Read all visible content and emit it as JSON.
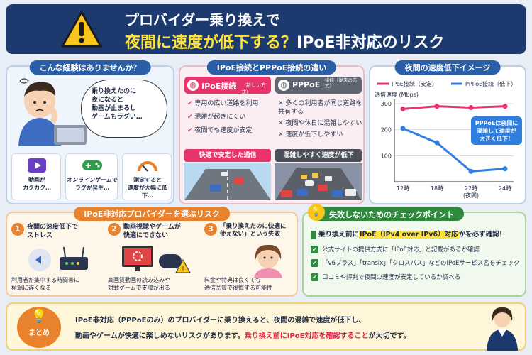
{
  "header": {
    "title_line1": "プロバイダー乗り換えで",
    "title_line2_a": "夜間に速度が低下する？",
    "title_line2_b": "IPoE非対応のリスク"
  },
  "experience": {
    "title": "こんな経験はありませんか？",
    "bubble": [
      "乗り換えたのに",
      "夜になると",
      "動画が止まるし",
      "ゲームもラグい…"
    ],
    "cards": [
      {
        "icon": "play-icon",
        "label": "動画が\nカクカク…"
      },
      {
        "icon": "gamepad-icon",
        "label": "オンラインゲームで\nラグが発生…"
      },
      {
        "icon": "speedometer-icon",
        "label": "測定すると\n速度が大幅に低下…"
      }
    ]
  },
  "compare": {
    "title": "IPoE接続とPPPoE接続の違い",
    "ipoe": {
      "name": "IPoE接続",
      "sub": "（新しい方式）",
      "points": [
        "専用の広い道路を利用",
        "混雑が起きにくい",
        "夜間でも速度が安定"
      ],
      "caption": "快適で安定した通信"
    },
    "pppoe": {
      "name": "PPPoE",
      "sub": "接続（従来の方式）",
      "points": [
        "多くの利用者が同じ道路を\n共有する",
        "夜間や休日に混雑しやすい",
        "速度が低下しやすい"
      ],
      "caption": "混雑しやすく速度が低下"
    }
  },
  "chart_data": {
    "type": "line",
    "title": "夜間の速度低下イメージ",
    "ylabel": "通信速度 (Mbps)",
    "categories": [
      "12時",
      "18時",
      "22時\n(夜間)",
      "24時"
    ],
    "ylim": [
      0,
      300
    ],
    "yticks": [
      100,
      200,
      300
    ],
    "series": [
      {
        "name": "IPoE接続（安定）",
        "color": "#e8336b",
        "values": [
          280,
          290,
          285,
          290
        ]
      },
      {
        "name": "PPPoE接続（低下）",
        "color": "#2f7fe0",
        "values": [
          205,
          150,
          40,
          50
        ]
      }
    ],
    "legend": "top",
    "annotation": "PPPoEは夜間に\n混雑して速度が\n大きく低下！"
  },
  "risks": {
    "title": "IPoE非対応プロバイダーを選ぶリスク",
    "items": [
      {
        "num": "1",
        "title": "夜間の速度低下で\nストレス",
        "desc": "利用者が集中する時間帯に\n極端に遅くなる"
      },
      {
        "num": "2",
        "title": "動画視聴やゲームが\n快適にできない",
        "desc": "高画質動画の読み込みや\n対戦ゲームで支障が出る"
      },
      {
        "num": "3",
        "title": "「乗り換えたのに快適に\n使えない」という失敗",
        "desc": "料金や特典は良くても\n通信品質で後悔する可能性"
      }
    ]
  },
  "checklist": {
    "title": "失敗しないためのチェックポイント",
    "lead_a": "乗り換え前に",
    "lead_hl": "IPoE（IPv4 over IPv6）対応",
    "lead_b": "かを必ず確認！",
    "items": [
      "公式サイトの提供方式に「IPoE対応」と記載があるか確認",
      "「v6プラス」「transix」「クロスパス」などのIPoEサービス名をチェック",
      "口コミや評判で夜間の速度が安定しているか調べる"
    ]
  },
  "summary": {
    "badge": "まとめ",
    "line1": "IPoE非対応（PPPoEのみ）のプロバイダーに乗り換えると、夜間の混雑で速度が低下し、",
    "line2_a": "動画やゲームが快適に楽しめないリスクがあります。",
    "line2_hl": "乗り換え前にIPoE対応を確認すること",
    "line2_b": "が大切です。"
  }
}
